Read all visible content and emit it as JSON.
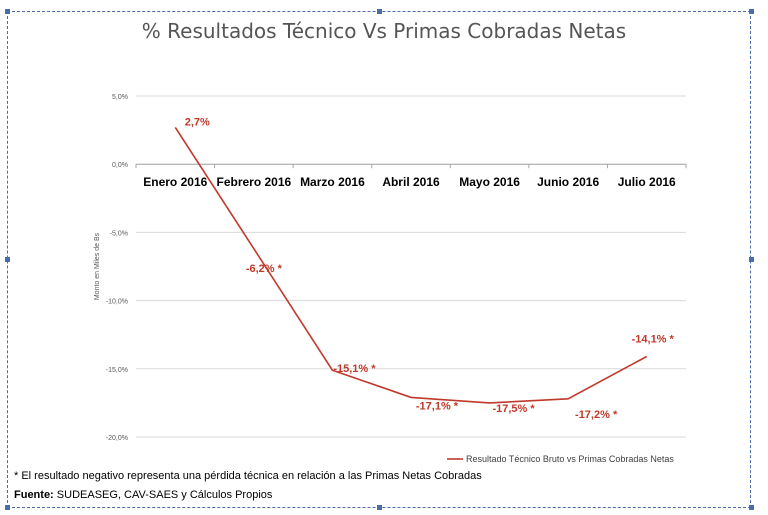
{
  "chart_data": {
    "type": "line",
    "title": "% Resultados Técnico Vs Primas Cobradas Netas",
    "ylabel": "Monto en Miles de Bs",
    "xlabel": "",
    "categories": [
      "Enero 2016",
      "Febrero 2016",
      "Marzo 2016",
      "Abril 2016",
      "Mayo 2016",
      "Junio 2016",
      "Julio 2016"
    ],
    "series": [
      {
        "name": "Resultado Técnico Bruto vs Primas Cobradas Netas",
        "values": [
          2.7,
          -6.2,
          -15.1,
          -17.1,
          -17.5,
          -17.2,
          -14.1
        ],
        "labels": [
          "2,7%",
          "-6,2% *",
          "-15,1% *",
          "-17,1% *",
          "-17,5% *",
          "-17,2% *",
          "-14,1% *"
        ],
        "color": "#c0392b"
      }
    ],
    "ylim": [
      -20,
      5
    ],
    "yticks": [
      5,
      0,
      -5,
      -10,
      -15,
      -20
    ],
    "ytick_labels": [
      "5,0%",
      "0,0%",
      "-5,0%",
      "-10,0%",
      "-15,0%",
      "-20,0%"
    ],
    "grid": true,
    "legend": "bottom-right"
  },
  "footer": {
    "note": "* El resultado negativo representa una pérdida técnica en relación a las Primas Netas Cobradas",
    "source_label": "Fuente:",
    "source_text": " SUDEASEG, CAV-SAES y Cálculos Propios"
  }
}
